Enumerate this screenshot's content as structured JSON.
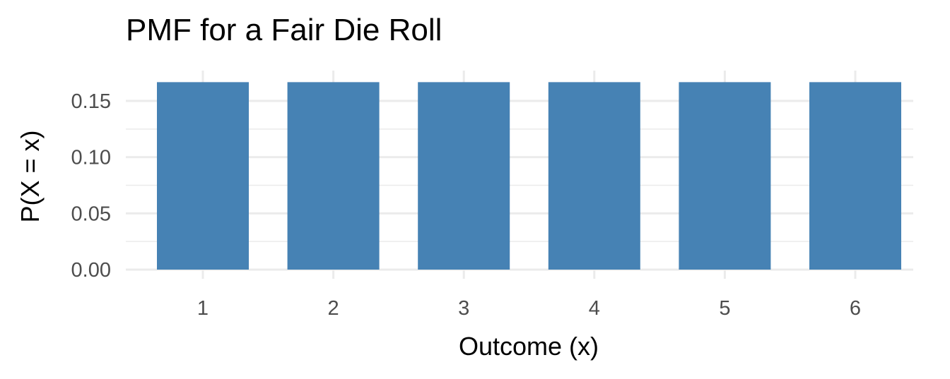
{
  "chart_data": {
    "type": "bar",
    "title": "PMF for a Fair Die Roll",
    "xlabel": "Outcome (x)",
    "ylabel": "P(X = x)",
    "categories": [
      "1",
      "2",
      "3",
      "4",
      "5",
      "6"
    ],
    "values": [
      0.1667,
      0.1667,
      0.1667,
      0.1667,
      0.1667,
      0.1667
    ],
    "ylim": [
      0,
      0.175
    ],
    "yticks": [
      0.0,
      0.05,
      0.1,
      0.15
    ],
    "ytick_labels": [
      "0.00",
      "0.05",
      "0.10",
      "0.15"
    ],
    "grid": true,
    "legend": "none",
    "bar_color": "#4682b4",
    "grid_color": "#ebebeb"
  }
}
